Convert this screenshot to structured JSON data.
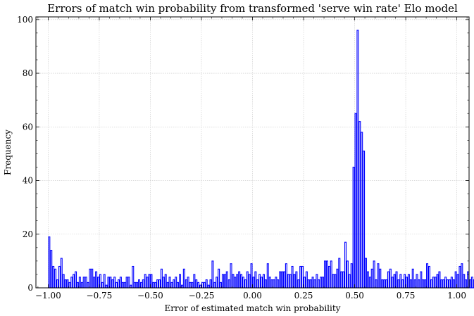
{
  "chart_data": {
    "type": "bar",
    "title": "Errors of match win probability from transformed 'serve win rate' Elo model",
    "xlabel": "Error of estimated match win probability",
    "ylabel": "Frequency",
    "xlim": [
      -1.06,
      1.06
    ],
    "ylim": [
      0,
      101
    ],
    "xticks": [
      -1.0,
      -0.75,
      -0.5,
      -0.25,
      0.0,
      0.25,
      0.5,
      0.75,
      1.0
    ],
    "xtick_labels": [
      "−1.00",
      "−0.75",
      "−0.50",
      "−0.25",
      "0.00",
      "0.25",
      "0.50",
      "0.75",
      "1.00"
    ],
    "yticks": [
      0,
      20,
      40,
      60,
      80,
      100
    ],
    "ytick_labels": [
      "0",
      "20",
      "40",
      "60",
      "80",
      "100"
    ],
    "grid": true,
    "legend": "none",
    "bar_color": "#0000ff",
    "bins_start": -1.0,
    "bin_width": 0.01,
    "values": [
      19,
      14,
      8,
      7,
      3,
      8,
      11,
      5,
      3,
      3,
      2,
      4,
      5,
      6,
      2,
      4,
      2,
      4,
      4,
      2,
      7,
      7,
      4,
      6,
      4,
      5,
      2,
      5,
      1,
      4,
      4,
      3,
      4,
      2,
      3,
      4,
      2,
      2,
      4,
      4,
      1,
      8,
      2,
      2,
      3,
      2,
      3,
      5,
      4,
      5,
      5,
      2,
      2,
      3,
      3,
      7,
      4,
      5,
      2,
      4,
      2,
      3,
      4,
      2,
      5,
      1,
      7,
      3,
      4,
      2,
      2,
      5,
      3,
      2,
      1,
      2,
      2,
      3,
      1,
      3,
      10,
      2,
      4,
      7,
      2,
      5,
      5,
      6,
      3,
      9,
      5,
      4,
      5,
      6,
      5,
      4,
      3,
      6,
      5,
      9,
      4,
      6,
      3,
      5,
      4,
      5,
      3,
      9,
      4,
      3,
      3,
      4,
      3,
      6,
      6,
      6,
      9,
      5,
      5,
      8,
      5,
      6,
      3,
      8,
      8,
      4,
      6,
      3,
      3,
      4,
      3,
      5,
      3,
      4,
      4,
      10,
      10,
      8,
      10,
      5,
      5,
      7,
      11,
      6,
      6,
      17,
      10,
      5,
      9,
      45,
      65,
      96,
      62,
      58,
      51,
      11,
      6,
      4,
      7,
      10,
      3,
      9,
      7,
      3,
      3,
      3,
      6,
      7,
      4,
      5,
      6,
      3,
      5,
      3,
      5,
      4,
      5,
      3,
      7,
      3,
      5,
      3,
      6,
      3,
      3,
      9,
      8,
      3,
      4,
      4,
      5,
      6,
      3,
      3,
      4,
      3,
      3,
      4,
      3,
      6,
      5,
      8,
      9,
      5,
      3,
      6,
      3,
      4,
      3,
      3,
      5,
      3,
      3,
      3,
      5,
      3,
      3,
      5,
      4,
      9,
      3,
      6,
      3,
      5,
      4,
      5,
      3,
      7,
      3,
      3,
      3,
      6,
      3,
      3,
      5,
      3,
      4,
      3,
      3,
      3,
      3,
      6,
      4,
      5,
      4,
      6,
      3,
      5,
      9,
      3,
      5,
      3,
      3,
      7,
      3,
      2,
      4,
      1,
      3,
      1,
      5,
      3,
      4,
      2,
      6,
      3,
      3,
      4,
      3,
      5,
      7,
      3,
      3,
      4,
      3,
      2,
      4,
      3,
      5,
      3,
      3,
      2,
      3,
      4,
      5,
      3,
      4,
      3,
      2,
      5,
      3,
      4,
      5,
      3,
      3,
      4,
      3,
      2,
      4,
      3,
      3,
      3,
      4,
      3,
      3,
      2,
      5,
      3,
      5,
      3,
      6,
      4,
      4,
      10,
      9,
      4,
      9,
      3,
      5,
      2,
      7,
      11,
      11,
      24
    ],
    "bars_hollow": true
  }
}
